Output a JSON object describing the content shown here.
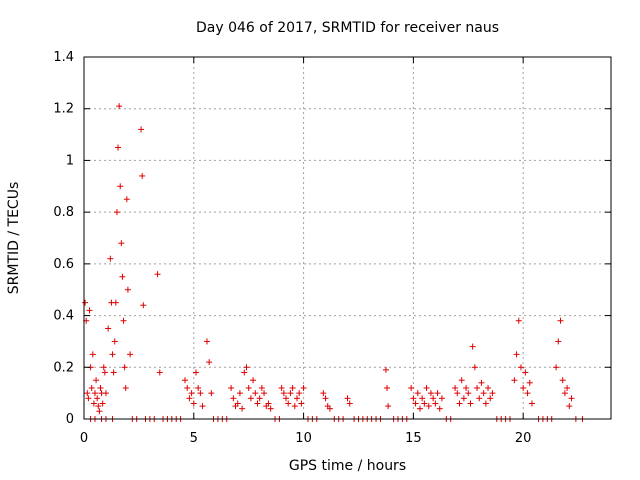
{
  "chart_data": {
    "type": "scatter",
    "title": "Day 046 of 2017, SRMTID for receiver naus",
    "xlabel": "GPS time / hours",
    "ylabel": "SRMTID / TECUs",
    "xlim": [
      0,
      24
    ],
    "ylim": [
      0,
      1.4
    ],
    "xticks": [
      0,
      5,
      10,
      15,
      20
    ],
    "xtick_labels": [
      "0",
      "5",
      "10",
      "15",
      "20"
    ],
    "yticks": [
      0,
      0.2,
      0.4,
      0.6,
      0.8,
      1.0,
      1.2,
      1.4
    ],
    "ytick_labels": [
      "0",
      "0.2",
      "0.4",
      "0.6",
      "0.8",
      "1",
      "1.2",
      "1.4"
    ],
    "grid": true,
    "marker": "+",
    "color": "#e00000",
    "series": [
      {
        "name": "SRMTID",
        "x": [
          0.05,
          0.1,
          0.15,
          0.2,
          0.25,
          0.3,
          0.35,
          0.4,
          0.45,
          0.5,
          0.55,
          0.6,
          0.65,
          0.7,
          0.75,
          0.8,
          0.85,
          0.9,
          0.95,
          1.0,
          1.1,
          1.2,
          1.25,
          1.3,
          1.35,
          1.4,
          1.45,
          1.5,
          1.55,
          1.6,
          1.65,
          1.7,
          1.75,
          1.8,
          1.85,
          1.9,
          1.95,
          2.0,
          2.1,
          2.6,
          2.65,
          2.7,
          3.35,
          3.45,
          4.6,
          4.7,
          4.8,
          4.9,
          5.0,
          5.1,
          5.2,
          5.3,
          5.4,
          5.6,
          5.7,
          5.8,
          6.7,
          6.8,
          6.9,
          7.0,
          7.1,
          7.2,
          7.3,
          7.4,
          7.5,
          7.6,
          7.7,
          7.8,
          7.9,
          8.0,
          8.1,
          8.2,
          8.3,
          8.4,
          8.5,
          9.0,
          9.1,
          9.2,
          9.3,
          9.4,
          9.5,
          9.6,
          9.7,
          9.8,
          9.9,
          10.0,
          10.9,
          11.0,
          11.1,
          11.2,
          12.0,
          12.1,
          13.75,
          13.8,
          13.85,
          14.9,
          15.0,
          15.1,
          15.2,
          15.3,
          15.4,
          15.5,
          15.6,
          15.7,
          15.8,
          15.9,
          16.0,
          16.1,
          16.2,
          16.3,
          16.9,
          17.0,
          17.1,
          17.2,
          17.3,
          17.4,
          17.5,
          17.6,
          17.7,
          17.8,
          17.9,
          18.0,
          18.1,
          18.2,
          18.3,
          18.4,
          18.5,
          18.6,
          19.6,
          19.7,
          19.8,
          19.9,
          20.0,
          20.1,
          20.2,
          20.3,
          20.4,
          21.5,
          21.6,
          21.7,
          21.8,
          21.9,
          22.0,
          22.1,
          22.2,
          0.3,
          0.5,
          0.8,
          1.0,
          1.3,
          2.2,
          2.4,
          2.8,
          3.0,
          3.2,
          3.6,
          3.8,
          4.0,
          4.2,
          4.4,
          5.9,
          6.1,
          6.3,
          6.5,
          8.7,
          8.9,
          10.2,
          10.4,
          10.6,
          11.4,
          11.6,
          11.8,
          12.3,
          12.5,
          12.7,
          12.9,
          13.1,
          13.3,
          13.5,
          14.1,
          14.3,
          14.5,
          14.7,
          16.5,
          16.7,
          18.8,
          19.0,
          19.2,
          19.4,
          20.7,
          20.9,
          21.1,
          21.3,
          22.4,
          22.7
        ],
        "y": [
          0.45,
          0.38,
          0.1,
          0.08,
          0.42,
          0.2,
          0.12,
          0.25,
          0.06,
          0.1,
          0.15,
          0.08,
          0.05,
          0.03,
          0.12,
          0.1,
          0.06,
          0.2,
          0.18,
          0.1,
          0.35,
          0.62,
          0.45,
          0.25,
          0.18,
          0.3,
          0.45,
          0.8,
          1.05,
          1.21,
          0.9,
          0.68,
          0.55,
          0.38,
          0.2,
          0.12,
          0.85,
          0.5,
          0.25,
          1.12,
          0.94,
          0.44,
          0.56,
          0.18,
          0.15,
          0.12,
          0.08,
          0.1,
          0.06,
          0.18,
          0.12,
          0.1,
          0.05,
          0.3,
          0.22,
          0.1,
          0.12,
          0.08,
          0.05,
          0.06,
          0.1,
          0.04,
          0.18,
          0.2,
          0.12,
          0.08,
          0.15,
          0.1,
          0.06,
          0.08,
          0.12,
          0.1,
          0.05,
          0.06,
          0.04,
          0.12,
          0.1,
          0.08,
          0.06,
          0.1,
          0.12,
          0.05,
          0.08,
          0.1,
          0.06,
          0.12,
          0.1,
          0.08,
          0.05,
          0.04,
          0.08,
          0.06,
          0.19,
          0.12,
          0.05,
          0.12,
          0.08,
          0.06,
          0.1,
          0.04,
          0.08,
          0.06,
          0.12,
          0.05,
          0.1,
          0.08,
          0.06,
          0.1,
          0.04,
          0.08,
          0.12,
          0.1,
          0.06,
          0.15,
          0.08,
          0.12,
          0.1,
          0.06,
          0.28,
          0.2,
          0.12,
          0.08,
          0.14,
          0.1,
          0.06,
          0.12,
          0.08,
          0.1,
          0.15,
          0.25,
          0.38,
          0.2,
          0.12,
          0.18,
          0.1,
          0.14,
          0.06,
          0.2,
          0.3,
          0.38,
          0.15,
          0.1,
          0.12,
          0.05,
          0.08,
          0,
          0,
          0,
          0,
          0,
          0,
          0,
          0,
          0,
          0,
          0,
          0,
          0,
          0,
          0,
          0,
          0,
          0,
          0,
          0,
          0,
          0,
          0,
          0,
          0,
          0,
          0,
          0,
          0,
          0,
          0,
          0,
          0,
          0,
          0,
          0,
          0,
          0,
          0,
          0,
          0,
          0,
          0,
          0,
          0,
          0,
          0,
          0,
          0,
          0
        ]
      }
    ]
  }
}
